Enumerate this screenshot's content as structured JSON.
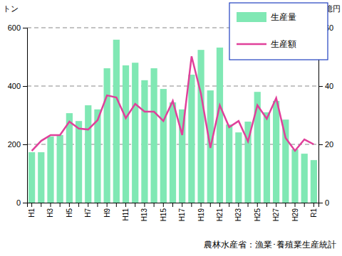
{
  "chart_data": {
    "type": "bar",
    "categories": [
      "H1",
      null,
      "H3",
      null,
      "H5",
      null,
      "H7",
      null,
      "H9",
      null,
      "H11",
      null,
      "H13",
      null,
      "H15",
      null,
      "H17",
      null,
      "H19",
      null,
      "H21",
      null,
      "H23",
      null,
      "H25",
      null,
      "H27",
      null,
      "H29",
      null,
      "R1"
    ],
    "series": [
      {
        "name": "生産量",
        "type": "bar",
        "color": "#80e8b4",
        "values": [
          173,
          173,
          227,
          232,
          307,
          280,
          334,
          320,
          461,
          559,
          471,
          480,
          420,
          461,
          390,
          344,
          320,
          439,
          524,
          385,
          532,
          268,
          241,
          278,
          380,
          310,
          349,
          285,
          183,
          168,
          146
        ]
      },
      {
        "name": "生産額",
        "type": "line",
        "color": "#e0409a",
        "axis": "y2",
        "values": [
          17.8,
          21.2,
          23.2,
          23.2,
          27.8,
          25.4,
          25.1,
          28.3,
          36.8,
          36.1,
          29.0,
          33.9,
          31.2,
          31.2,
          28.0,
          34.9,
          23.2,
          50.2,
          37.3,
          18.8,
          33.4,
          25.9,
          28.0,
          21.0,
          33.4,
          28.8,
          35.9,
          22.2,
          17.8,
          21.7,
          20.0
        ]
      }
    ],
    "ylim": [
      0,
      600
    ],
    "yticks": [
      0,
      200,
      400,
      600
    ],
    "y2lim": [
      0,
      60
    ],
    "y2ticks": [
      0,
      20,
      40,
      60
    ],
    "y_label": "トン",
    "y2_label": "億円",
    "source": "農林水産省：漁業･養殖業生産統計",
    "grid": true,
    "legend": "upper right"
  }
}
